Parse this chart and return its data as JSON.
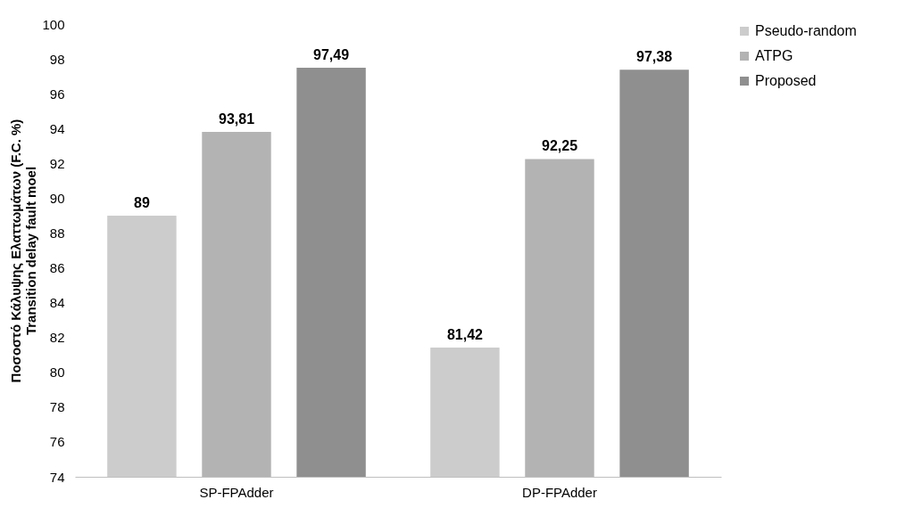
{
  "chart_data": {
    "type": "bar",
    "ylabel": "Ποσοστό Κάλυψης Ελαττωμάτων (F.C. %)\nTransition delay fault moel",
    "categories": [
      "SP-FPAdder",
      "DP-FPAdder"
    ],
    "series": [
      {
        "name": "Pseudo-random",
        "color": "#cccccc",
        "values": [
          89,
          81.42
        ],
        "value_labels": [
          "89",
          "81,42"
        ]
      },
      {
        "name": "ATPG",
        "color": "#b3b3b3",
        "values": [
          93.81,
          92.25
        ],
        "value_labels": [
          "93,81",
          "92,25"
        ]
      },
      {
        "name": "Proposed",
        "color": "#8f8f8f",
        "values": [
          97.49,
          97.38
        ],
        "value_labels": [
          "97,49",
          "97,38"
        ]
      }
    ],
    "ylim": [
      74,
      100
    ],
    "yticks": [
      74,
      76,
      78,
      80,
      82,
      84,
      86,
      88,
      90,
      92,
      94,
      96,
      98,
      100
    ],
    "grid": false,
    "legend": "right"
  }
}
